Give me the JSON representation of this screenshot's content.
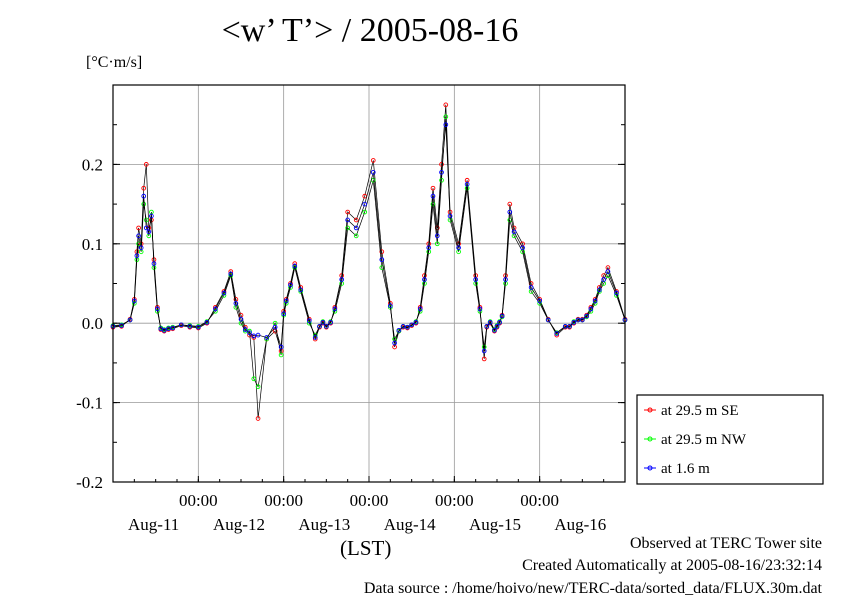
{
  "title": "<w’ T’> / 2005-08-16",
  "y_unit": "[°C·m/s]",
  "x_unit": "(LST)",
  "footer": {
    "line1": "Observed at TERC Tower site",
    "line2": "Created Automatically at 2005-08-16/23:32:14",
    "line3": "Data source : /home/hoivo/new/TERC-data/sorted_data/FLUX.30m.dat"
  },
  "legend": {
    "items": [
      "at 29.5 m SE",
      "at 29.5 m NW",
      "at 1.6 m"
    ]
  },
  "chart_data": {
    "type": "line",
    "title": "<w’ T’> / 2005-08-16",
    "ylabel": "[°C·m/s]",
    "xlabel": "(LST)",
    "xlim": [
      0,
      6
    ],
    "ylim": [
      -0.2,
      0.3
    ],
    "y_ticks": [
      "-0.2",
      "-0.1",
      "0.0",
      "0.1",
      "0.2"
    ],
    "x_time_ticks": [
      {
        "x": 1,
        "label": "00:00"
      },
      {
        "x": 2,
        "label": "00:00"
      },
      {
        "x": 3,
        "label": "00:00"
      },
      {
        "x": 4,
        "label": "00:00"
      },
      {
        "x": 5,
        "label": "00:00"
      }
    ],
    "x_day_labels": [
      {
        "x": 0.5,
        "label": "Aug-11"
      },
      {
        "x": 1.5,
        "label": "Aug-12"
      },
      {
        "x": 2.5,
        "label": "Aug-13"
      },
      {
        "x": 3.5,
        "label": "Aug-14"
      },
      {
        "x": 4.5,
        "label": "Aug-15"
      },
      {
        "x": 5.5,
        "label": "Aug-16"
      }
    ],
    "grid": true,
    "legend_position": "right",
    "series": [
      {
        "name": "at 29.5 m SE",
        "color": "#ff0000",
        "x": [
          0.0,
          0.1,
          0.2,
          0.25,
          0.28,
          0.3,
          0.33,
          0.36,
          0.39,
          0.42,
          0.45,
          0.48,
          0.52,
          0.56,
          0.6,
          0.65,
          0.7,
          0.8,
          0.9,
          1.0,
          1.1,
          1.2,
          1.3,
          1.38,
          1.44,
          1.5,
          1.55,
          1.6,
          1.65,
          1.7,
          1.8,
          1.9,
          1.97,
          2.0,
          2.03,
          2.08,
          2.13,
          2.2,
          2.3,
          2.37,
          2.42,
          2.46,
          2.5,
          2.55,
          2.6,
          2.68,
          2.75,
          2.85,
          2.95,
          3.05,
          3.15,
          3.25,
          3.3,
          3.35,
          3.4,
          3.45,
          3.5,
          3.55,
          3.6,
          3.65,
          3.7,
          3.75,
          3.8,
          3.85,
          3.9,
          3.95,
          4.05,
          4.15,
          4.25,
          4.3,
          4.35,
          4.38,
          4.42,
          4.47,
          4.5,
          4.53,
          4.56,
          4.6,
          4.65,
          4.7,
          4.8,
          4.9,
          5.0,
          5.1,
          5.2,
          5.3,
          5.35,
          5.4,
          5.45,
          5.5,
          5.55,
          5.6,
          5.65,
          5.7,
          5.75,
          5.8,
          5.9,
          6.0
        ],
        "y": [
          -0.005,
          -0.004,
          0.005,
          0.03,
          0.09,
          0.12,
          0.1,
          0.17,
          0.2,
          0.12,
          0.13,
          0.08,
          0.02,
          -0.008,
          -0.01,
          -0.008,
          -0.007,
          -0.003,
          -0.005,
          -0.006,
          0.0,
          0.02,
          0.04,
          0.065,
          0.03,
          0.01,
          -0.005,
          -0.015,
          -0.018,
          -0.12,
          -0.02,
          -0.01,
          -0.035,
          0.015,
          0.03,
          0.05,
          0.075,
          0.045,
          0.005,
          -0.02,
          -0.005,
          0.0,
          -0.005,
          0.0,
          0.02,
          0.06,
          0.14,
          0.13,
          0.16,
          0.205,
          0.09,
          0.025,
          -0.03,
          -0.01,
          -0.005,
          -0.006,
          -0.003,
          0.0,
          0.02,
          0.06,
          0.1,
          0.17,
          0.12,
          0.2,
          0.275,
          0.14,
          0.1,
          0.18,
          0.06,
          0.02,
          -0.045,
          -0.005,
          0.0,
          -0.01,
          -0.005,
          0.0,
          0.01,
          0.06,
          0.15,
          0.12,
          0.1,
          0.05,
          0.03,
          0.005,
          -0.015,
          -0.005,
          -0.005,
          0.0,
          0.005,
          0.005,
          0.01,
          0.02,
          0.03,
          0.045,
          0.06,
          0.07,
          0.04,
          0.005
        ]
      },
      {
        "name": "at 29.5 m NW",
        "color": "#00ff00",
        "x": [
          0.0,
          0.1,
          0.2,
          0.25,
          0.28,
          0.3,
          0.33,
          0.36,
          0.39,
          0.42,
          0.45,
          0.48,
          0.52,
          0.56,
          0.6,
          0.65,
          0.7,
          0.8,
          0.9,
          1.0,
          1.1,
          1.2,
          1.3,
          1.38,
          1.44,
          1.5,
          1.55,
          1.6,
          1.65,
          1.7,
          1.8,
          1.9,
          1.97,
          2.0,
          2.03,
          2.08,
          2.13,
          2.2,
          2.3,
          2.37,
          2.42,
          2.46,
          2.5,
          2.55,
          2.6,
          2.68,
          2.75,
          2.85,
          2.95,
          3.05,
          3.15,
          3.25,
          3.3,
          3.35,
          3.4,
          3.45,
          3.5,
          3.55,
          3.6,
          3.65,
          3.7,
          3.75,
          3.8,
          3.85,
          3.9,
          3.95,
          4.05,
          4.15,
          4.25,
          4.3,
          4.35,
          4.38,
          4.42,
          4.47,
          4.5,
          4.53,
          4.56,
          4.6,
          4.65,
          4.7,
          4.8,
          4.9,
          5.0,
          5.1,
          5.2,
          5.3,
          5.35,
          5.4,
          5.45,
          5.5,
          5.55,
          5.6,
          5.65,
          5.7,
          5.75,
          5.8,
          5.9,
          6.0
        ],
        "y": [
          -0.003,
          -0.002,
          0.004,
          0.025,
          0.08,
          0.1,
          0.09,
          0.15,
          0.13,
          0.11,
          0.14,
          0.07,
          0.015,
          -0.006,
          -0.008,
          -0.006,
          -0.005,
          -0.002,
          -0.003,
          -0.004,
          0.002,
          0.015,
          0.035,
          0.06,
          0.02,
          0.0,
          -0.01,
          -0.01,
          -0.07,
          -0.08,
          -0.02,
          0.0,
          -0.04,
          0.01,
          0.025,
          0.045,
          0.07,
          0.04,
          0.0,
          -0.015,
          -0.004,
          0.002,
          -0.004,
          0.002,
          0.015,
          0.05,
          0.12,
          0.11,
          0.14,
          0.18,
          0.07,
          0.02,
          -0.02,
          -0.01,
          -0.004,
          -0.005,
          -0.002,
          0.002,
          0.015,
          0.05,
          0.09,
          0.15,
          0.1,
          0.18,
          0.26,
          0.13,
          0.09,
          0.17,
          0.05,
          0.015,
          -0.03,
          -0.004,
          0.002,
          -0.008,
          -0.003,
          0.002,
          0.008,
          0.05,
          0.13,
          0.11,
          0.09,
          0.04,
          0.025,
          0.004,
          -0.012,
          -0.004,
          -0.004,
          0.002,
          0.004,
          0.004,
          0.008,
          0.015,
          0.025,
          0.04,
          0.05,
          0.06,
          0.035,
          0.004
        ]
      },
      {
        "name": "at 1.6 m",
        "color": "#0000ff",
        "x": [
          0.0,
          0.1,
          0.2,
          0.25,
          0.28,
          0.3,
          0.33,
          0.36,
          0.39,
          0.42,
          0.45,
          0.48,
          0.52,
          0.56,
          0.6,
          0.65,
          0.7,
          0.8,
          0.9,
          1.0,
          1.1,
          1.2,
          1.3,
          1.38,
          1.44,
          1.5,
          1.55,
          1.6,
          1.65,
          1.7,
          1.8,
          1.9,
          1.97,
          2.0,
          2.03,
          2.08,
          2.13,
          2.2,
          2.3,
          2.37,
          2.42,
          2.46,
          2.5,
          2.55,
          2.6,
          2.68,
          2.75,
          2.85,
          2.95,
          3.05,
          3.15,
          3.25,
          3.3,
          3.35,
          3.4,
          3.45,
          3.5,
          3.55,
          3.6,
          3.65,
          3.7,
          3.75,
          3.8,
          3.85,
          3.9,
          3.95,
          4.05,
          4.15,
          4.25,
          4.3,
          4.35,
          4.38,
          4.42,
          4.47,
          4.5,
          4.53,
          4.56,
          4.6,
          4.65,
          4.7,
          4.8,
          4.9,
          5.0,
          5.1,
          5.2,
          5.3,
          5.35,
          5.4,
          5.45,
          5.5,
          5.55,
          5.6,
          5.65,
          5.7,
          5.75,
          5.8,
          5.9,
          6.0
        ],
        "y": [
          -0.004,
          -0.003,
          0.004,
          0.028,
          0.085,
          0.11,
          0.095,
          0.16,
          0.12,
          0.115,
          0.135,
          0.075,
          0.018,
          -0.007,
          -0.009,
          -0.007,
          -0.006,
          -0.002,
          -0.004,
          -0.005,
          0.001,
          0.018,
          0.038,
          0.062,
          0.025,
          0.005,
          -0.008,
          -0.012,
          -0.016,
          -0.015,
          -0.018,
          -0.005,
          -0.03,
          0.012,
          0.028,
          0.048,
          0.072,
          0.042,
          0.003,
          -0.018,
          -0.004,
          0.001,
          -0.004,
          0.001,
          0.018,
          0.055,
          0.13,
          0.12,
          0.15,
          0.19,
          0.08,
          0.022,
          -0.025,
          -0.009,
          -0.004,
          -0.005,
          -0.002,
          0.001,
          0.018,
          0.055,
          0.095,
          0.16,
          0.11,
          0.19,
          0.25,
          0.135,
          0.095,
          0.175,
          0.055,
          0.018,
          -0.035,
          -0.004,
          0.001,
          -0.009,
          -0.004,
          0.001,
          0.009,
          0.055,
          0.14,
          0.115,
          0.095,
          0.045,
          0.028,
          0.004,
          -0.013,
          -0.004,
          -0.004,
          0.001,
          0.004,
          0.004,
          0.009,
          0.018,
          0.028,
          0.042,
          0.055,
          0.065,
          0.038,
          0.004
        ]
      }
    ]
  }
}
